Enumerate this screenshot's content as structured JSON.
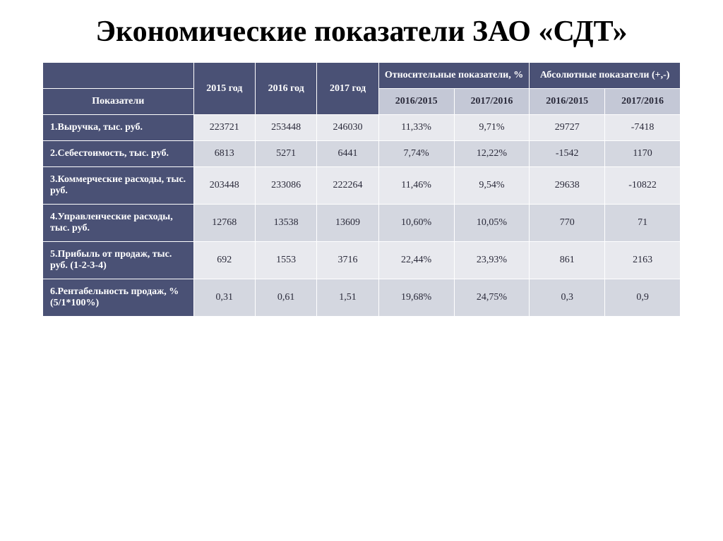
{
  "title": "Экономические показатели ЗАО «СДТ»",
  "colors": {
    "header_dark_bg": "#4a5175",
    "header_light_bg": "#c4c8d6",
    "row_a_bg": "#e8e9ee",
    "row_b_bg": "#d4d7e0",
    "border": "#ffffff",
    "text_light": "#ffffff",
    "text_dark": "#2a2a3a",
    "title_color": "#000000"
  },
  "typography": {
    "title_fontsize": 42,
    "table_fontsize": 14,
    "font_family": "Georgia serif"
  },
  "table": {
    "type": "table",
    "col_widths_pct": [
      22,
      9,
      9,
      9,
      11,
      11,
      11,
      11
    ],
    "header": {
      "blank": "",
      "y2015": "2015 год",
      "y2016": "2016 год",
      "y2017": "2017 год",
      "rel_group": "Относительные показатели, %",
      "abs_group": "Абсолютные показатели (+,-)",
      "indicators": "Показатели",
      "rel_1": "2016/2015",
      "rel_2": "2017/2016",
      "abs_1": "2016/2015",
      "abs_2": "2017/2016"
    },
    "rows": [
      {
        "label": "1.Выручка, тыс. руб.",
        "y2015": "223721",
        "y2016": "253448",
        "y2017": "246030",
        "rel1": "11,33%",
        "rel2": "9,71%",
        "abs1": "29727",
        "abs2": "-7418"
      },
      {
        "label": "2.Себестоимость, тыс. руб.",
        "y2015": "6813",
        "y2016": "5271",
        "y2017": "6441",
        "rel1": "7,74%",
        "rel2": "12,22%",
        "abs1": "-1542",
        "abs2": "1170"
      },
      {
        "label": "3.Коммерческие расходы, тыс. руб.",
        "y2015": "203448",
        "y2016": "233086",
        "y2017": "222264",
        "rel1": "11,46%",
        "rel2": "9,54%",
        "abs1": "29638",
        "abs2": "-10822"
      },
      {
        "label": "4.Управленческие расходы, тыс. руб.",
        "y2015": "12768",
        "y2016": "13538",
        "y2017": "13609",
        "rel1": "10,60%",
        "rel2": "10,05%",
        "abs1": "770",
        "abs2": "71"
      },
      {
        "label": "5.Прибыль от продаж, тыс. руб. (1-2-3-4)",
        "y2015": "692",
        "y2016": "1553",
        "y2017": "3716",
        "rel1": "22,44%",
        "rel2": "23,93%",
        "abs1": "861",
        "abs2": "2163"
      },
      {
        "label": "6.Рентабельность продаж, %  (5/1*100%)",
        "y2015": "0,31",
        "y2016": "0,61",
        "y2017": "1,51",
        "rel1": "19,68%",
        "rel2": "24,75%",
        "abs1": "0,3",
        "abs2": "0,9"
      }
    ]
  }
}
